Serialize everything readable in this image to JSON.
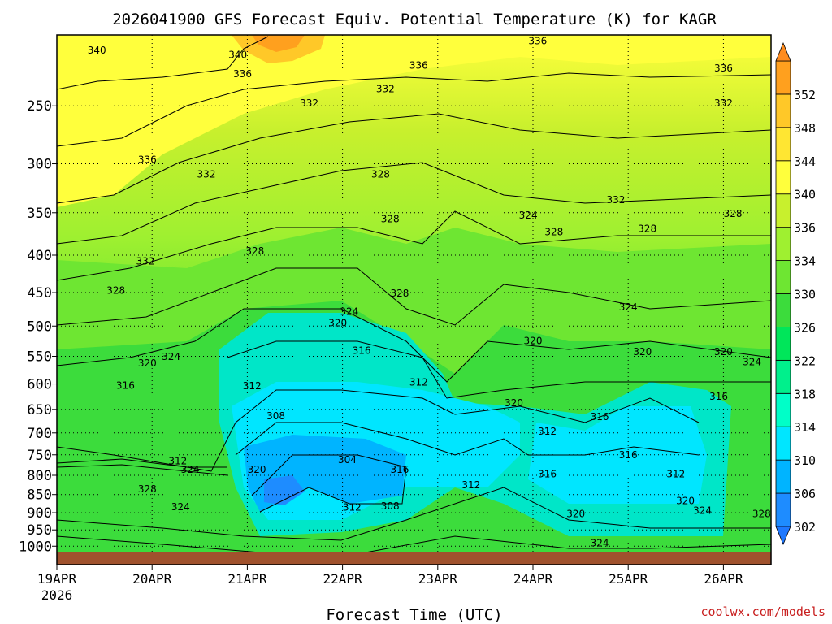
{
  "chart_data": {
    "type": "heatmap",
    "title": "2026041900 GFS Forecast Equiv. Potential Temperature (K) for KAGR",
    "xlabel": "Forecast Time (UTC)",
    "ylabel": "",
    "credit": "coolwx.com/models",
    "x_ticks": [
      "19APR",
      "20APR",
      "21APR",
      "22APR",
      "23APR",
      "24APR",
      "25APR",
      "26APR"
    ],
    "x_tick_year": "2026",
    "xlim_days": [
      0,
      7.5
    ],
    "y_ticks": [
      250,
      300,
      350,
      400,
      450,
      500,
      550,
      600,
      650,
      700,
      750,
      800,
      850,
      900,
      950,
      1000
    ],
    "ylim": [
      1020,
      200
    ],
    "y_scale": "log-pressure",
    "colorbar": {
      "levels": [
        302,
        306,
        310,
        314,
        318,
        322,
        326,
        330,
        334,
        336,
        340,
        344,
        348,
        352
      ],
      "colors": [
        "#1e8cff",
        "#00b4ff",
        "#00e6ff",
        "#00ffc8",
        "#00f08c",
        "#00e65a",
        "#3cdc3c",
        "#6ee632",
        "#9ff030",
        "#c8f02d",
        "#ffff3c",
        "#ffe632",
        "#ffc828",
        "#ffa01e"
      ]
    },
    "contour_labels": [
      {
        "text": "340",
        "day": 0.42,
        "p": 210
      },
      {
        "text": "340",
        "day": 1.9,
        "p": 213
      },
      {
        "text": "336",
        "day": 1.95,
        "p": 226
      },
      {
        "text": "336",
        "day": 5.05,
        "p": 204
      },
      {
        "text": "336",
        "day": 3.8,
        "p": 220
      },
      {
        "text": "336",
        "day": 7.0,
        "p": 222
      },
      {
        "text": "332",
        "day": 3.45,
        "p": 237
      },
      {
        "text": "332",
        "day": 2.65,
        "p": 248
      },
      {
        "text": "332",
        "day": 7.0,
        "p": 248
      },
      {
        "text": "336",
        "day": 0.95,
        "p": 296
      },
      {
        "text": "332",
        "day": 1.57,
        "p": 310
      },
      {
        "text": "328",
        "day": 3.4,
        "p": 310
      },
      {
        "text": "332",
        "day": 5.87,
        "p": 336
      },
      {
        "text": "324",
        "day": 4.95,
        "p": 353
      },
      {
        "text": "328",
        "day": 3.5,
        "p": 357
      },
      {
        "text": "328",
        "day": 6.2,
        "p": 368
      },
      {
        "text": "328",
        "day": 5.22,
        "p": 372
      },
      {
        "text": "328",
        "day": 7.1,
        "p": 351
      },
      {
        "text": "328",
        "day": 2.08,
        "p": 395
      },
      {
        "text": "332",
        "day": 0.93,
        "p": 408
      },
      {
        "text": "328",
        "day": 0.62,
        "p": 447
      },
      {
        "text": "328",
        "day": 3.6,
        "p": 451
      },
      {
        "text": "324",
        "day": 3.07,
        "p": 478
      },
      {
        "text": "324",
        "day": 6.0,
        "p": 471
      },
      {
        "text": "320",
        "day": 2.95,
        "p": 495
      },
      {
        "text": "320",
        "day": 5.0,
        "p": 524
      },
      {
        "text": "316",
        "day": 3.2,
        "p": 540
      },
      {
        "text": "320",
        "day": 6.15,
        "p": 542
      },
      {
        "text": "320",
        "day": 7.0,
        "p": 542
      },
      {
        "text": "324",
        "day": 1.2,
        "p": 551
      },
      {
        "text": "320",
        "day": 0.95,
        "p": 562
      },
      {
        "text": "324",
        "day": 7.3,
        "p": 560
      },
      {
        "text": "316",
        "day": 0.72,
        "p": 603
      },
      {
        "text": "312",
        "day": 2.05,
        "p": 604
      },
      {
        "text": "312",
        "day": 3.8,
        "p": 597
      },
      {
        "text": "316",
        "day": 6.95,
        "p": 624
      },
      {
        "text": "320",
        "day": 4.8,
        "p": 637
      },
      {
        "text": "316",
        "day": 5.7,
        "p": 665
      },
      {
        "text": "308",
        "day": 2.3,
        "p": 664
      },
      {
        "text": "312",
        "day": 5.15,
        "p": 697
      },
      {
        "text": "304",
        "day": 3.05,
        "p": 762
      },
      {
        "text": "316",
        "day": 6.0,
        "p": 750
      },
      {
        "text": "312",
        "day": 1.27,
        "p": 765
      },
      {
        "text": "324",
        "day": 1.4,
        "p": 786
      },
      {
        "text": "320",
        "day": 2.1,
        "p": 786
      },
      {
        "text": "316",
        "day": 3.6,
        "p": 786
      },
      {
        "text": "316",
        "day": 5.15,
        "p": 797
      },
      {
        "text": "312",
        "day": 6.5,
        "p": 797
      },
      {
        "text": "312",
        "day": 4.35,
        "p": 825
      },
      {
        "text": "328",
        "day": 0.95,
        "p": 836
      },
      {
        "text": "320",
        "day": 6.6,
        "p": 867
      },
      {
        "text": "312",
        "day": 3.1,
        "p": 885
      },
      {
        "text": "308",
        "day": 3.5,
        "p": 882
      },
      {
        "text": "324",
        "day": 1.3,
        "p": 884
      },
      {
        "text": "324",
        "day": 6.78,
        "p": 894
      },
      {
        "text": "320",
        "day": 5.45,
        "p": 903
      },
      {
        "text": "328",
        "day": 7.4,
        "p": 903
      },
      {
        "text": "324",
        "day": 5.7,
        "p": 990
      }
    ]
  }
}
